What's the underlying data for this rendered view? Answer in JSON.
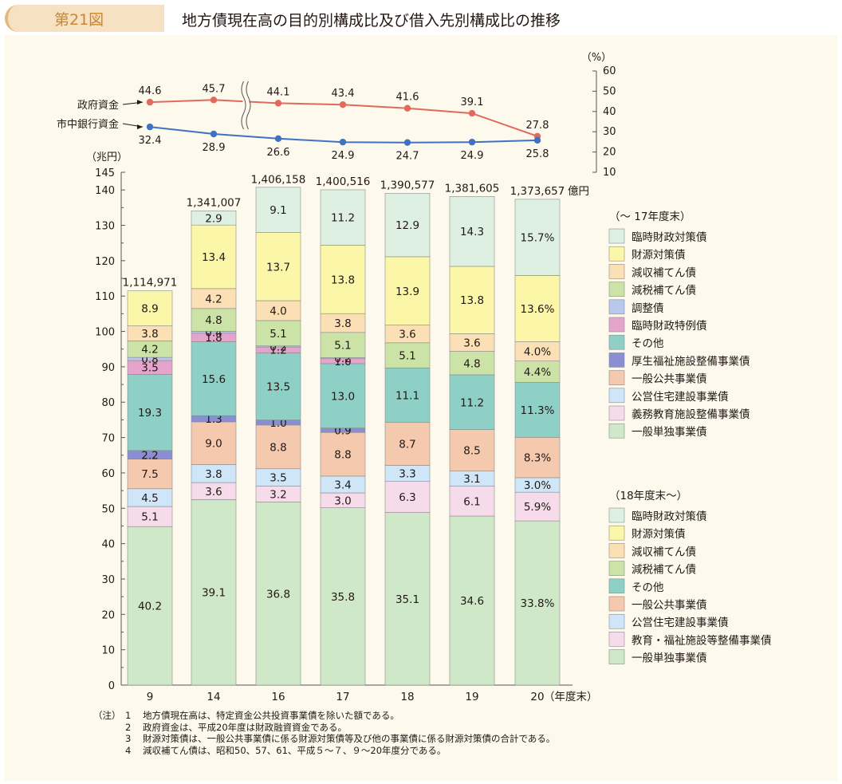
{
  "header": {
    "figure_number": "第21図",
    "title": "地方債現在高の目的別構成比及び借入先別構成比の推移"
  },
  "colors": {
    "header_bg": "#f6e2c2",
    "header_accent": "#c9872f",
    "panel_bg": "#fdf9ed",
    "gov_line": "#e06a5d",
    "bank_line": "#3f72c2",
    "axis": "#555555",
    "segments": {
      "ippan_tandoku": "#cfe8c7",
      "kyoiku": "#f6dcea",
      "kouei_jutaku": "#cfe5f8",
      "ippan_kokyo": "#f5c9ae",
      "kosei_fukushi": "#8a8fd3",
      "sonota": "#8ecfc6",
      "rinji_zaisei_tokurei": "#e4a4cc",
      "chosei": "#b9c8ec",
      "genzei": "#cce3a8",
      "genshu": "#fbe0b5",
      "zaigen": "#fbf6a8",
      "rinji_zaisei": "#def0e2"
    }
  },
  "chart_data": [
    {
      "type": "line",
      "unit_label": "（%）",
      "ylim": [
        10,
        60
      ],
      "yticks": [
        10,
        20,
        30,
        40,
        50,
        60
      ],
      "categories": [
        "9",
        "14",
        "16",
        "17",
        "18",
        "19",
        "20"
      ],
      "axis_break_between": [
        "14",
        "16"
      ],
      "series": [
        {
          "key": "gov",
          "name": "政府資金",
          "values": [
            44.6,
            45.7,
            44.1,
            43.4,
            41.6,
            39.1,
            27.8
          ]
        },
        {
          "key": "bank",
          "name": "市中銀行資金",
          "values": [
            32.4,
            28.9,
            26.6,
            24.9,
            24.7,
            24.9,
            25.8
          ]
        }
      ]
    },
    {
      "type": "bar",
      "stacked": true,
      "unit_label": "（兆円）",
      "ylim": [
        0,
        145
      ],
      "yticks": [
        0,
        10,
        20,
        30,
        40,
        50,
        60,
        70,
        80,
        90,
        100,
        110,
        120,
        130,
        140,
        145
      ],
      "x_unit_label": "（年度末）",
      "categories": [
        "9",
        "14",
        "16",
        "17",
        "18",
        "19",
        "20"
      ],
      "totals_label": [
        "1,114,971",
        "1,341,007",
        "1,406,158",
        "1,400,516",
        "1,390,577",
        "1,381,605",
        "1,373,657"
      ],
      "totals_unit": "億円",
      "totals_oku": [
        1114971,
        1341007,
        1406158,
        1400516,
        1390577,
        1381605,
        1373657
      ],
      "segment_order": [
        "ippan_tandoku",
        "kyoiku",
        "kouei_jutaku",
        "ippan_kokyo",
        "kosei_fukushi",
        "sonota",
        "rinji_zaisei_tokurei",
        "chosei",
        "genzei",
        "genshu",
        "zaigen",
        "rinji_zaisei"
      ],
      "percent_labels": [
        {
          "ippan_tandoku": "40.2",
          "kyoiku": "5.1",
          "kouei_jutaku": "4.5",
          "ippan_kokyo": "7.5",
          "kosei_fukushi": "2.2",
          "sonota": "19.3",
          "rinji_zaisei_tokurei": "3.5",
          "chosei": "0.8",
          "genzei": "4.2",
          "genshu": "3.8",
          "zaigen": "8.9"
        },
        {
          "ippan_tandoku": "39.1",
          "kyoiku": "3.6",
          "kouei_jutaku": "3.8",
          "ippan_kokyo": "9.0",
          "kosei_fukushi": "1.3",
          "sonota": "15.6",
          "rinji_zaisei_tokurei": "1.8",
          "chosei": "0.4",
          "genzei": "4.8",
          "genshu": "4.2",
          "zaigen": "13.4",
          "rinji_zaisei": "2.9"
        },
        {
          "ippan_tandoku": "36.8",
          "kyoiku": "3.2",
          "kouei_jutaku": "3.5",
          "ippan_kokyo": "8.8",
          "kosei_fukushi": "1.0",
          "sonota": "13.5",
          "rinji_zaisei_tokurei": "1.2",
          "chosei": "0.2",
          "genzei": "5.1",
          "genshu": "4.0",
          "zaigen": "13.7",
          "rinji_zaisei": "9.1"
        },
        {
          "ippan_tandoku": "35.8",
          "kyoiku": "3.0",
          "kouei_jutaku": "3.4",
          "ippan_kokyo": "8.8",
          "kosei_fukushi": "0.9",
          "sonota": "13.0",
          "rinji_zaisei_tokurei": "1.0",
          "chosei": "0.2",
          "genzei": "5.1",
          "genshu": "3.8",
          "zaigen": "13.8",
          "rinji_zaisei": "11.2"
        },
        {
          "ippan_tandoku": "35.1",
          "kyoiku": "6.3",
          "kouei_jutaku": "3.3",
          "ippan_kokyo": "8.7",
          "sonota": "11.1",
          "genzei": "5.1",
          "genshu": "3.6",
          "zaigen": "13.9",
          "rinji_zaisei": "12.9"
        },
        {
          "ippan_tandoku": "34.6",
          "kyoiku": "6.1",
          "kouei_jutaku": "3.1",
          "ippan_kokyo": "8.5",
          "sonota": "11.2",
          "genzei": "4.8",
          "genshu": "3.6",
          "zaigen": "13.8",
          "rinji_zaisei": "14.3"
        },
        {
          "ippan_tandoku": "33.8%",
          "kyoiku": "5.9%",
          "kouei_jutaku": "3.0%",
          "ippan_kokyo": "8.3%",
          "sonota": "11.3%",
          "genzei": "4.4%",
          "genshu": "4.0%",
          "zaigen": "13.6%",
          "rinji_zaisei": "15.7%"
        }
      ],
      "legends": [
        {
          "heading": "（〜 17年度末）",
          "items": [
            {
              "key": "rinji_zaisei",
              "label": "臨時財政対策債"
            },
            {
              "key": "zaigen",
              "label": "財源対策債"
            },
            {
              "key": "genshu",
              "label": "減収補てん債"
            },
            {
              "key": "genzei",
              "label": "減税補てん債"
            },
            {
              "key": "chosei",
              "label": "調整債"
            },
            {
              "key": "rinji_zaisei_tokurei",
              "label": "臨時財政特例債"
            },
            {
              "key": "sonota",
              "label": "その他"
            },
            {
              "key": "kosei_fukushi",
              "label": "厚生福祉施設整備事業債"
            },
            {
              "key": "ippan_kokyo",
              "label": "一般公共事業債"
            },
            {
              "key": "kouei_jutaku",
              "label": "公営住宅建設事業債"
            },
            {
              "key": "kyoiku",
              "label": "義務教育施設整備事業債"
            },
            {
              "key": "ippan_tandoku",
              "label": "一般単独事業債"
            }
          ]
        },
        {
          "heading": "（18年度末〜）",
          "items": [
            {
              "key": "rinji_zaisei",
              "label": "臨時財政対策債"
            },
            {
              "key": "zaigen",
              "label": "財源対策債"
            },
            {
              "key": "genshu",
              "label": "減収補てん債"
            },
            {
              "key": "genzei",
              "label": "減税補てん債"
            },
            {
              "key": "sonota",
              "label": "その他"
            },
            {
              "key": "ippan_kokyo",
              "label": "一般公共事業債"
            },
            {
              "key": "kouei_jutaku",
              "label": "公営住宅建設事業債"
            },
            {
              "key": "kyoiku",
              "label": "教育・福祉施設等整備事業債"
            },
            {
              "key": "ippan_tandoku",
              "label": "一般単独事業債"
            }
          ]
        }
      ]
    }
  ],
  "notes": {
    "prefix": "（注）",
    "items": [
      {
        "num": "1",
        "text": "地方債現在高は、特定資金公共投資事業債を除いた額である。"
      },
      {
        "num": "2",
        "text": "政府資金は、平成20年度は財政融資資金である。"
      },
      {
        "num": "3",
        "text": "財源対策債は、一般公共事業債に係る財源対策債等及び他の事業債に係る財源対策債の合計である。"
      },
      {
        "num": "4",
        "text": "減収補てん債は、昭和50、57、61、平成５〜７、９〜20年度分である。"
      }
    ]
  }
}
